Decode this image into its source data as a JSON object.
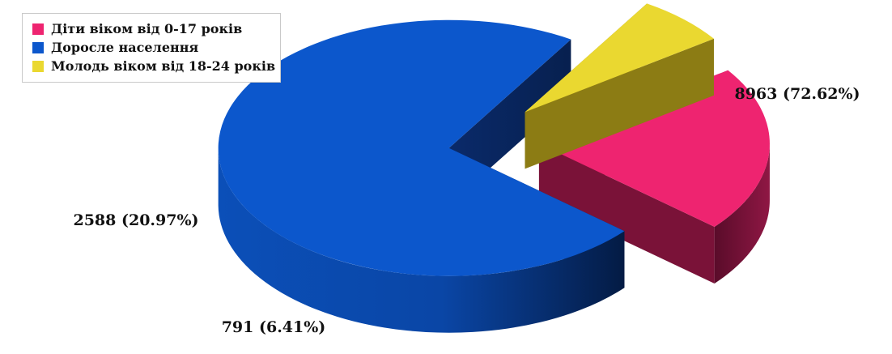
{
  "chart_data": {
    "type": "pie",
    "title": "",
    "legend_position": "top-left",
    "style": "3d-exploded",
    "slices": [
      {
        "name": "Діти віком від 0-17 років",
        "value": 2588,
        "percent": 20.97,
        "color": "#ee2470",
        "side_color": "#7a1238",
        "label": "2588 (20.97%)",
        "exploded": true
      },
      {
        "name": "Доросле населення",
        "value": 8963,
        "percent": 72.62,
        "color": "#0c57cc",
        "side_color": "#062a66",
        "label": "8963 (72.62%)",
        "exploded": true
      },
      {
        "name": "Молодь віком від 18-24 років",
        "value": 791,
        "percent": 6.41,
        "color": "#ead830",
        "side_color": "#8c7c14",
        "label": "791 (6.41%)",
        "exploded": true
      }
    ]
  },
  "legend": {
    "items": [
      {
        "label": "Діти віком від 0-17 років",
        "color": "#ee2470"
      },
      {
        "label": "Доросле населення",
        "color": "#0c57cc"
      },
      {
        "label": "Молодь віком від 18-24 років",
        "color": "#ead830"
      }
    ]
  }
}
